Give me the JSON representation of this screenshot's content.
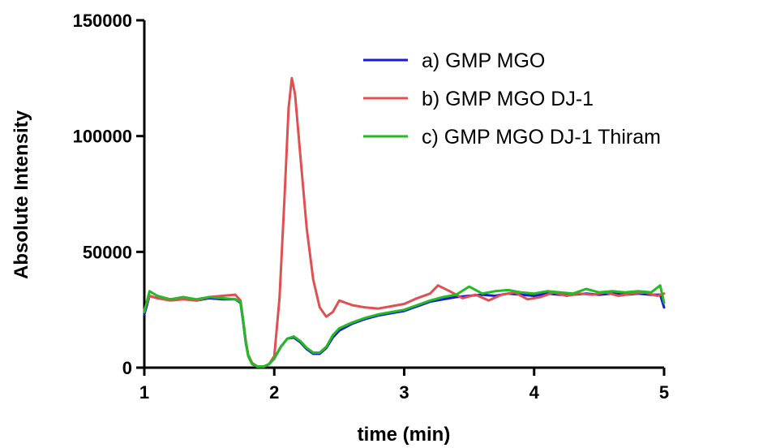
{
  "chart_data": {
    "type": "line",
    "title": "",
    "xlabel": "time (min)",
    "ylabel": "Absolute Intensity",
    "xlim": [
      1,
      5
    ],
    "ylim": [
      0,
      150000
    ],
    "xticks": [
      1,
      2,
      3,
      4,
      5
    ],
    "yticks": [
      0,
      50000,
      100000,
      150000
    ],
    "grid": false,
    "legend_position": "top-right",
    "series": [
      {
        "name": "a) GMP MGO",
        "color": "#1a1adf",
        "points": [
          [
            1.0,
            23000
          ],
          [
            1.04,
            31000
          ],
          [
            1.1,
            30000
          ],
          [
            1.2,
            29500
          ],
          [
            1.3,
            30000
          ],
          [
            1.4,
            29000
          ],
          [
            1.5,
            30000
          ],
          [
            1.6,
            29500
          ],
          [
            1.7,
            29500
          ],
          [
            1.74,
            28000
          ],
          [
            1.76,
            20000
          ],
          [
            1.78,
            11000
          ],
          [
            1.8,
            5000
          ],
          [
            1.83,
            1500
          ],
          [
            1.87,
            500
          ],
          [
            1.92,
            500
          ],
          [
            1.96,
            1500
          ],
          [
            2.0,
            4000
          ],
          [
            2.05,
            9000
          ],
          [
            2.1,
            12500
          ],
          [
            2.15,
            13000
          ],
          [
            2.2,
            11000
          ],
          [
            2.25,
            8000
          ],
          [
            2.3,
            6000
          ],
          [
            2.35,
            6000
          ],
          [
            2.4,
            8500
          ],
          [
            2.45,
            13000
          ],
          [
            2.5,
            16000
          ],
          [
            2.6,
            19000
          ],
          [
            2.7,
            21000
          ],
          [
            2.8,
            22500
          ],
          [
            2.9,
            23500
          ],
          [
            3.0,
            24500
          ],
          [
            3.1,
            26500
          ],
          [
            3.2,
            28500
          ],
          [
            3.3,
            29500
          ],
          [
            3.4,
            30500
          ],
          [
            3.5,
            31000
          ],
          [
            3.6,
            31500
          ],
          [
            3.7,
            31000
          ],
          [
            3.8,
            32000
          ],
          [
            3.9,
            31500
          ],
          [
            4.0,
            31000
          ],
          [
            4.1,
            32000
          ],
          [
            4.2,
            31500
          ],
          [
            4.3,
            31500
          ],
          [
            4.4,
            32000
          ],
          [
            4.5,
            31500
          ],
          [
            4.6,
            32000
          ],
          [
            4.7,
            31500
          ],
          [
            4.8,
            32000
          ],
          [
            4.9,
            31500
          ],
          [
            4.97,
            31500
          ],
          [
            5.0,
            26000
          ]
        ]
      },
      {
        "name": "b) GMP MGO DJ-1",
        "color": "#e05050",
        "points": [
          [
            1.0,
            25000
          ],
          [
            1.04,
            31000
          ],
          [
            1.1,
            30000
          ],
          [
            1.2,
            29000
          ],
          [
            1.3,
            29500
          ],
          [
            1.4,
            29000
          ],
          [
            1.5,
            30500
          ],
          [
            1.6,
            31000
          ],
          [
            1.7,
            31500
          ],
          [
            1.74,
            29000
          ],
          [
            1.76,
            21000
          ],
          [
            1.78,
            12000
          ],
          [
            1.8,
            5500
          ],
          [
            1.83,
            2000
          ],
          [
            1.87,
            500
          ],
          [
            1.92,
            500
          ],
          [
            1.96,
            1500
          ],
          [
            2.0,
            5000
          ],
          [
            2.04,
            30000
          ],
          [
            2.08,
            75000
          ],
          [
            2.11,
            112000
          ],
          [
            2.135,
            125000
          ],
          [
            2.16,
            118000
          ],
          [
            2.2,
            92000
          ],
          [
            2.25,
            60000
          ],
          [
            2.3,
            38000
          ],
          [
            2.35,
            26000
          ],
          [
            2.4,
            22000
          ],
          [
            2.45,
            24000
          ],
          [
            2.5,
            29000
          ],
          [
            2.6,
            27000
          ],
          [
            2.7,
            26000
          ],
          [
            2.8,
            25500
          ],
          [
            2.9,
            26500
          ],
          [
            3.0,
            27500
          ],
          [
            3.1,
            30000
          ],
          [
            3.2,
            32000
          ],
          [
            3.26,
            35500
          ],
          [
            3.35,
            33000
          ],
          [
            3.45,
            30000
          ],
          [
            3.55,
            31500
          ],
          [
            3.65,
            29000
          ],
          [
            3.75,
            31500
          ],
          [
            3.85,
            32500
          ],
          [
            3.95,
            29500
          ],
          [
            4.05,
            30500
          ],
          [
            4.15,
            32500
          ],
          [
            4.25,
            31000
          ],
          [
            4.35,
            32000
          ],
          [
            4.45,
            31500
          ],
          [
            4.55,
            32500
          ],
          [
            4.65,
            31000
          ],
          [
            4.75,
            32000
          ],
          [
            4.85,
            32500
          ],
          [
            4.95,
            31000
          ],
          [
            5.0,
            32000
          ]
        ]
      },
      {
        "name": "c) GMP MGO DJ-1 Thiram",
        "color": "#22bb22",
        "points": [
          [
            1.0,
            24000
          ],
          [
            1.04,
            33000
          ],
          [
            1.1,
            31000
          ],
          [
            1.2,
            29500
          ],
          [
            1.3,
            30500
          ],
          [
            1.4,
            29500
          ],
          [
            1.5,
            30500
          ],
          [
            1.6,
            30000
          ],
          [
            1.7,
            29500
          ],
          [
            1.74,
            28500
          ],
          [
            1.76,
            20500
          ],
          [
            1.78,
            11500
          ],
          [
            1.8,
            5000
          ],
          [
            1.83,
            1500
          ],
          [
            1.87,
            500
          ],
          [
            1.92,
            500
          ],
          [
            1.96,
            1500
          ],
          [
            2.0,
            4000
          ],
          [
            2.05,
            9000
          ],
          [
            2.1,
            12500
          ],
          [
            2.15,
            13500
          ],
          [
            2.2,
            11500
          ],
          [
            2.25,
            8500
          ],
          [
            2.3,
            6500
          ],
          [
            2.35,
            6500
          ],
          [
            2.4,
            9000
          ],
          [
            2.45,
            14000
          ],
          [
            2.5,
            17000
          ],
          [
            2.6,
            19500
          ],
          [
            2.7,
            21500
          ],
          [
            2.8,
            23000
          ],
          [
            2.9,
            24000
          ],
          [
            3.0,
            25000
          ],
          [
            3.1,
            27000
          ],
          [
            3.2,
            29000
          ],
          [
            3.3,
            30500
          ],
          [
            3.4,
            31500
          ],
          [
            3.5,
            35000
          ],
          [
            3.6,
            32000
          ],
          [
            3.7,
            33000
          ],
          [
            3.8,
            33500
          ],
          [
            3.9,
            32500
          ],
          [
            4.0,
            32000
          ],
          [
            4.1,
            33000
          ],
          [
            4.2,
            32500
          ],
          [
            4.3,
            32000
          ],
          [
            4.4,
            34000
          ],
          [
            4.5,
            32500
          ],
          [
            4.6,
            33000
          ],
          [
            4.7,
            32500
          ],
          [
            4.8,
            33000
          ],
          [
            4.9,
            32500
          ],
          [
            4.97,
            35500
          ],
          [
            5.0,
            28000
          ]
        ]
      }
    ]
  }
}
